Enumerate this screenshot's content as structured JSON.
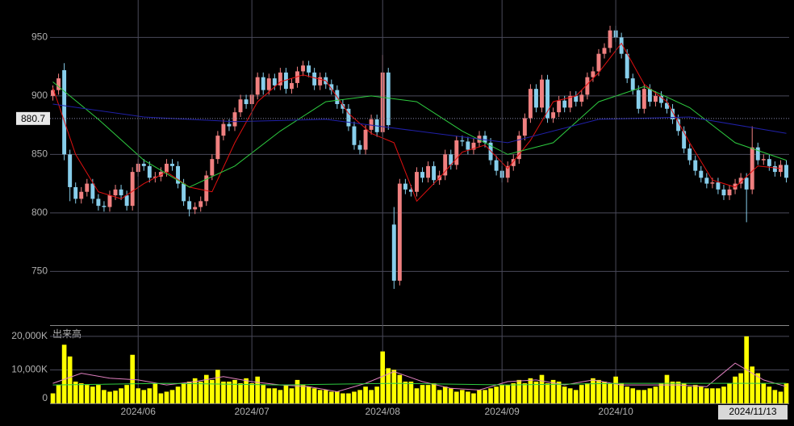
{
  "chart_data": [
    {
      "type": "candlestick",
      "xlim": [
        -0.5,
        129.5
      ],
      "ylim": [
        704,
        982
      ],
      "yticks": [
        750,
        800,
        850,
        900,
        950
      ],
      "xticks": [
        {
          "value": 15,
          "label": "2024/06"
        },
        {
          "value": 35,
          "label": "2024/07"
        },
        {
          "value": 58,
          "label": "2024/08"
        },
        {
          "value": 79,
          "label": "2024/09"
        },
        {
          "value": 99,
          "label": "2024/10"
        }
      ],
      "last_date": "2024/11/13",
      "price_marker": 880.7,
      "up_color": "#f08080",
      "down_color": "#87ceeb",
      "open": [
        900,
        905,
        922,
        850,
        822,
        812,
        818,
        825,
        812,
        806,
        805,
        815,
        820,
        815,
        806,
        835,
        842,
        840,
        830,
        831,
        835,
        842,
        840,
        825,
        810,
        803,
        805,
        810,
        832,
        846,
        866,
        876,
        874,
        886,
        897,
        893,
        901,
        916,
        905,
        915,
        909,
        920,
        906,
        911,
        921,
        926,
        920,
        909,
        916,
        910,
        905,
        893,
        889,
        874,
        858,
        854,
        871,
        880,
        869,
        920,
        790,
        742,
        825,
        820,
        818,
        835,
        830,
        840,
        828,
        832,
        850,
        841,
        862,
        861,
        854,
        860,
        866,
        860,
        845,
        836,
        830,
        840,
        846,
        866,
        881,
        906,
        890,
        914,
        881,
        886,
        896,
        890,
        900,
        895,
        901,
        916,
        921,
        936,
        941,
        956,
        950,
        936,
        915,
        905,
        889,
        906,
        895,
        900,
        894,
        889,
        880,
        870,
        855,
        845,
        836,
        830,
        825,
        826,
        820,
        815,
        820,
        825,
        830,
        820,
        856,
        845,
        846,
        840,
        835,
        841
      ],
      "high": [
        909,
        919,
        928,
        854,
        826,
        822,
        829,
        829,
        816,
        810,
        819,
        824,
        824,
        819,
        839,
        846,
        846,
        844,
        835,
        839,
        846,
        846,
        844,
        829,
        814,
        809,
        814,
        836,
        850,
        870,
        880,
        880,
        890,
        901,
        901,
        905,
        920,
        920,
        919,
        919,
        924,
        924,
        915,
        925,
        930,
        930,
        924,
        920,
        920,
        914,
        909,
        897,
        893,
        878,
        862,
        875,
        884,
        884,
        935,
        924,
        805,
        829,
        829,
        824,
        839,
        839,
        844,
        844,
        836,
        854,
        854,
        866,
        866,
        865,
        864,
        870,
        870,
        864,
        849,
        840,
        844,
        850,
        870,
        885,
        910,
        910,
        918,
        918,
        890,
        900,
        900,
        904,
        904,
        905,
        920,
        925,
        940,
        945,
        960,
        960,
        954,
        940,
        919,
        909,
        910,
        910,
        904,
        904,
        898,
        893,
        884,
        874,
        859,
        849,
        840,
        834,
        830,
        830,
        824,
        824,
        829,
        834,
        834,
        874,
        860,
        850,
        850,
        844,
        845,
        845
      ],
      "low": [
        896,
        901,
        845,
        810,
        808,
        808,
        814,
        808,
        802,
        801,
        801,
        811,
        811,
        802,
        802,
        831,
        836,
        826,
        826,
        827,
        831,
        836,
        821,
        806,
        797,
        799,
        801,
        806,
        828,
        842,
        862,
        870,
        870,
        882,
        889,
        889,
        897,
        901,
        901,
        905,
        905,
        902,
        902,
        907,
        917,
        916,
        905,
        905,
        906,
        901,
        889,
        885,
        870,
        854,
        850,
        850,
        867,
        865,
        865,
        871,
        735,
        738,
        816,
        814,
        814,
        826,
        826,
        824,
        824,
        828,
        837,
        837,
        857,
        850,
        850,
        856,
        856,
        841,
        832,
        826,
        826,
        836,
        842,
        862,
        877,
        886,
        886,
        877,
        877,
        882,
        886,
        886,
        891,
        891,
        897,
        912,
        917,
        932,
        937,
        946,
        932,
        911,
        901,
        885,
        885,
        891,
        891,
        890,
        885,
        876,
        866,
        851,
        841,
        832,
        826,
        821,
        821,
        816,
        811,
        811,
        816,
        821,
        792,
        816,
        841,
        841,
        836,
        831,
        831,
        826
      ],
      "close": [
        905,
        915,
        850,
        822,
        812,
        818,
        825,
        812,
        806,
        805,
        815,
        820,
        815,
        806,
        835,
        842,
        840,
        830,
        831,
        835,
        842,
        840,
        825,
        810,
        803,
        805,
        810,
        832,
        846,
        866,
        876,
        874,
        886,
        897,
        893,
        901,
        916,
        905,
        915,
        909,
        920,
        906,
        911,
        921,
        926,
        920,
        909,
        916,
        910,
        905,
        893,
        889,
        874,
        858,
        854,
        871,
        880,
        869,
        920,
        875,
        742,
        825,
        820,
        818,
        835,
        830,
        840,
        828,
        832,
        850,
        841,
        862,
        861,
        854,
        860,
        866,
        860,
        845,
        836,
        830,
        840,
        846,
        866,
        881,
        906,
        890,
        914,
        881,
        886,
        896,
        890,
        900,
        895,
        901,
        916,
        921,
        936,
        941,
        956,
        950,
        936,
        915,
        905,
        889,
        906,
        895,
        900,
        894,
        889,
        880,
        870,
        855,
        845,
        836,
        830,
        825,
        826,
        820,
        815,
        820,
        825,
        830,
        820,
        856,
        845,
        846,
        840,
        835,
        841,
        830
      ],
      "lines": [
        {
          "color": "#e01010",
          "x": [
            0,
            4,
            8,
            12,
            16,
            20,
            24,
            28,
            32,
            36,
            40,
            44,
            48,
            52,
            56,
            60,
            64,
            68,
            72,
            76,
            80,
            84,
            88,
            92,
            96,
            100,
            104,
            108,
            112,
            116,
            120,
            124,
            128
          ],
          "values": [
            907,
            850,
            818,
            812,
            825,
            835,
            822,
            818,
            860,
            895,
            912,
            918,
            913,
            885,
            868,
            860,
            810,
            830,
            852,
            858,
            838,
            862,
            895,
            900,
            920,
            945,
            910,
            895,
            860,
            828,
            822,
            840,
            838
          ]
        },
        {
          "color": "#2ecc40",
          "x": [
            0,
            8,
            16,
            24,
            32,
            40,
            48,
            56,
            64,
            72,
            80,
            88,
            96,
            104,
            112,
            120,
            129
          ],
          "values": [
            912,
            880,
            845,
            822,
            840,
            870,
            895,
            900,
            895,
            870,
            850,
            860,
            895,
            908,
            890,
            860,
            845
          ]
        },
        {
          "color": "#2020a8",
          "x": [
            0,
            16,
            32,
            48,
            64,
            80,
            96,
            112,
            129
          ],
          "values": [
            893,
            882,
            878,
            880,
            870,
            860,
            880,
            882,
            868
          ]
        }
      ]
    },
    {
      "type": "bar",
      "label": "出来高",
      "xlim": [
        -0.5,
        129.5
      ],
      "ylim": [
        0,
        23100
      ],
      "yticks": [
        0,
        {
          "value": 10000,
          "label": "10,000K"
        },
        {
          "value": 20000,
          "label": "20,000K"
        }
      ],
      "color": "#ffff00",
      "values": [
        3000,
        5500,
        17500,
        14000,
        6500,
        6000,
        5500,
        5000,
        5500,
        4000,
        3500,
        3800,
        4500,
        5500,
        14500,
        4500,
        4000,
        4500,
        6000,
        3000,
        3500,
        4000,
        5000,
        6000,
        6500,
        7500,
        6500,
        8500,
        7000,
        10000,
        6500,
        6500,
        7000,
        6000,
        7500,
        6000,
        8000,
        5500,
        4500,
        4500,
        4000,
        5500,
        4500,
        7000,
        5500,
        5000,
        4500,
        4000,
        4000,
        3500,
        3500,
        3000,
        3000,
        3500,
        4000,
        5000,
        4000,
        5000,
        15500,
        10500,
        10000,
        8500,
        6500,
        6500,
        4500,
        5500,
        5500,
        6000,
        4000,
        5000,
        4500,
        3500,
        4000,
        3500,
        3000,
        4000,
        4000,
        4500,
        5000,
        5500,
        5500,
        6000,
        7000,
        6000,
        7500,
        6500,
        8500,
        6000,
        7000,
        6500,
        5000,
        4500,
        4000,
        5500,
        6000,
        7500,
        7000,
        6500,
        6000,
        8000,
        6000,
        5000,
        4500,
        4000,
        4000,
        4500,
        5000,
        6000,
        8500,
        6500,
        6500,
        6000,
        5000,
        5500,
        5000,
        4500,
        4500,
        4500,
        5000,
        6000,
        8000,
        9000,
        20000,
        11000,
        9000,
        6000,
        5000,
        4000,
        3500,
        6000
      ],
      "lines": [
        {
          "color": "#e080c0",
          "x": [
            0,
            5,
            10,
            15,
            20,
            25,
            30,
            35,
            40,
            45,
            50,
            55,
            60,
            65,
            70,
            75,
            80,
            85,
            90,
            95,
            100,
            105,
            110,
            115,
            120,
            125,
            129
          ],
          "values": [
            6000,
            9000,
            7500,
            7000,
            5500,
            6500,
            8000,
            6500,
            5500,
            5000,
            3500,
            6000,
            9500,
            6500,
            4500,
            4000,
            6500,
            7000,
            5500,
            7000,
            5500,
            5500,
            5500,
            5000,
            12000,
            7000,
            5000
          ]
        },
        {
          "color": "#2ecc40",
          "x": [
            0,
            20,
            40,
            60,
            80,
            100,
            129
          ],
          "values": [
            5500,
            6000,
            5500,
            6000,
            5500,
            6000,
            6000
          ]
        }
      ]
    }
  ]
}
